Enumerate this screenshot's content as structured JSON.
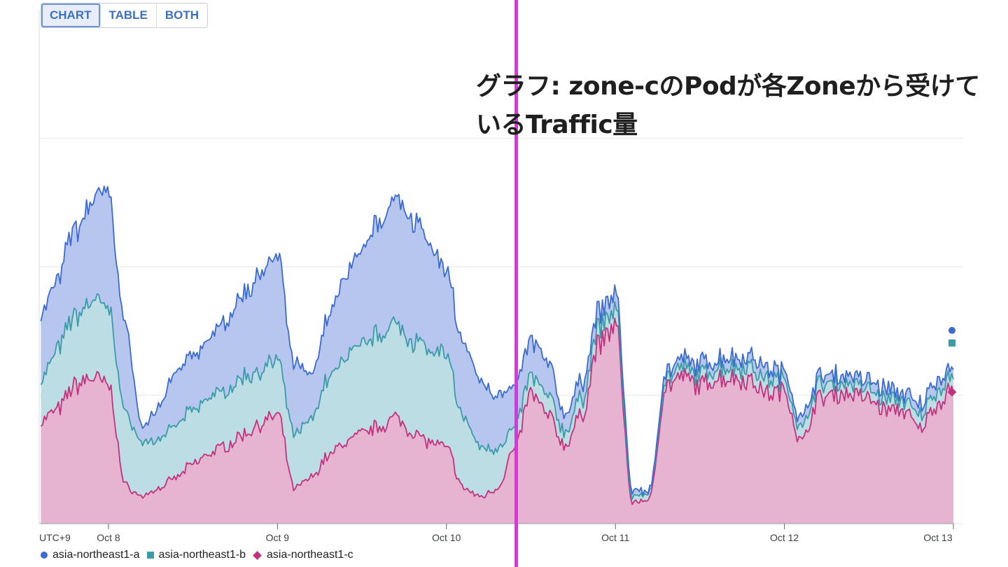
{
  "controls": {
    "view_options": [
      "CHART",
      "TABLE",
      "BOTH"
    ],
    "selected_view": "CHART"
  },
  "annotation": {
    "line1": "グラフ: zone-cのPodが各Zoneから受けて",
    "line2": "いるTraffic量"
  },
  "colors": {
    "zone_a": "#3b6ad0",
    "zone_b": "#3b9ba8",
    "zone_c": "#c4317f",
    "cursor": "#e52ee6"
  },
  "chart_data": {
    "type": "area",
    "stacked": true,
    "timezone_label": "UTC+9",
    "x_tick_labels": [
      "Oct 8",
      "Oct 9",
      "Oct 10",
      "Oct 11",
      "Oct 12",
      "Oct 13"
    ],
    "x_tick_positions_days": [
      0,
      1,
      2,
      3,
      4,
      5
    ],
    "x": [
      -0.4,
      -0.3,
      -0.2,
      -0.1,
      0,
      0.1,
      0.2,
      0.3,
      0.4,
      0.5,
      0.6,
      0.7,
      0.8,
      0.9,
      1.0,
      1.1,
      1.2,
      1.3,
      1.4,
      1.5,
      1.6,
      1.7,
      1.8,
      1.9,
      2.0,
      2.1,
      2.2,
      2.3,
      2.4,
      2.5,
      2.6,
      2.7,
      2.8,
      2.9,
      3.0,
      3.1,
      3.2,
      3.3,
      3.4,
      3.5,
      3.6,
      3.7,
      3.8,
      3.9,
      4.0,
      4.1,
      4.2,
      4.3,
      4.4,
      4.5,
      4.6,
      4.7,
      4.8,
      4.9,
      5.0
    ],
    "series": [
      {
        "name": "asia-northeast1-c",
        "values": [
          38,
          42,
          51,
          54,
          51,
          14,
          10,
          13,
          17,
          22,
          26,
          29,
          33,
          37,
          40,
          13,
          17,
          25,
          30,
          33,
          36,
          39,
          34,
          30,
          28,
          13,
          10,
          13,
          27,
          48,
          40,
          29,
          40,
          66,
          73,
          8,
          9,
          51,
          54,
          51,
          54,
          54,
          53,
          48,
          49,
          30,
          46,
          48,
          48,
          46,
          42,
          42,
          35,
          44,
          51
        ]
      },
      {
        "name": "asia-northeast1-b",
        "values": [
          15,
          22,
          26,
          28,
          28,
          27,
          20,
          18,
          19,
          20,
          21,
          20,
          21,
          20,
          20,
          20,
          22,
          28,
          31,
          33,
          35,
          35,
          34,
          34,
          34,
          26,
          18,
          15,
          8,
          6,
          7,
          5,
          6,
          6,
          6,
          2,
          2,
          3,
          3,
          4,
          4,
          4,
          5,
          5,
          4,
          5,
          5,
          4,
          4,
          4,
          4,
          4,
          5,
          5,
          4
        ]
      },
      {
        "name": "asia-northeast1-a",
        "values": [
          24,
          26,
          32,
          37,
          43,
          32,
          6,
          12,
          20,
          20,
          22,
          26,
          30,
          36,
          38,
          26,
          16,
          22,
          30,
          35,
          42,
          46,
          46,
          40,
          31,
          28,
          24,
          20,
          15,
          13,
          12,
          7,
          6,
          6,
          6,
          2,
          1,
          3,
          3,
          4,
          3,
          4,
          4,
          4,
          3,
          4,
          3,
          3,
          3,
          3,
          4,
          3,
          4,
          4,
          3
        ]
      }
    ],
    "x_range": [
      -0.41,
      5.0
    ],
    "y_range": [
      0,
      190
    ],
    "grid": true,
    "legend": "bottom"
  }
}
